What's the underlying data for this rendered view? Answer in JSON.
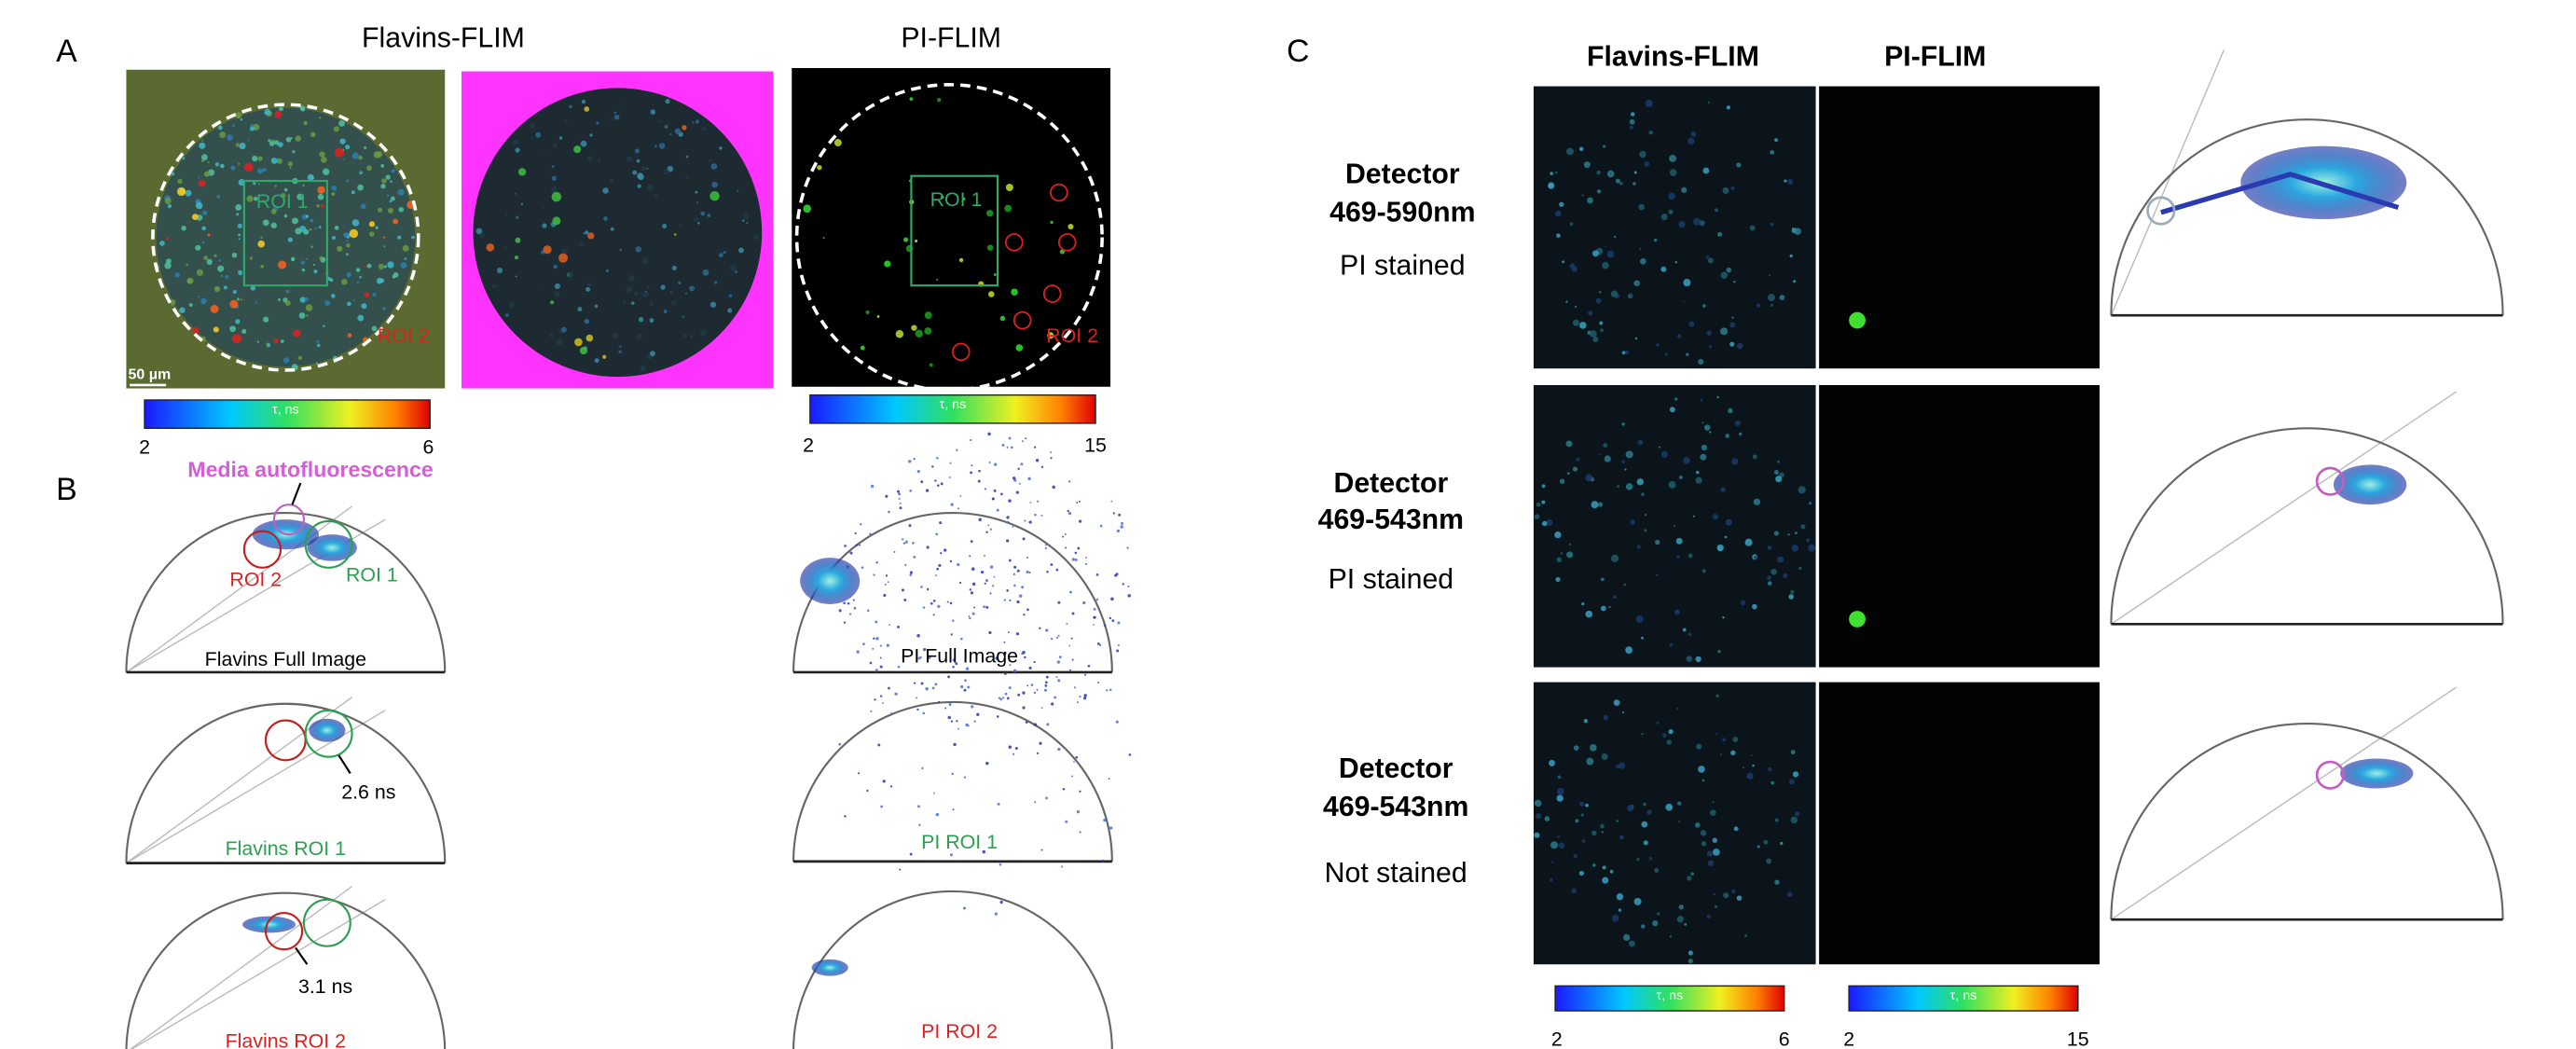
{
  "panel_a": {
    "label": "A",
    "titles": [
      "Flavins-FLIM",
      "PI-FLIM"
    ],
    "image_labels": {
      "flavins_roi_1": "ROI 1",
      "flavins_roi_2": "ROI 2",
      "scale_bar": "50 µm",
      "pi_roi_1": "ROI 1",
      "pi_roi_2": "ROI 2"
    },
    "colorbars": [
      {
        "label": "τ, ns",
        "min": 2,
        "max": 6
      },
      {
        "label": "τ, ns",
        "min": 2,
        "max": 15
      }
    ]
  },
  "panel_b": {
    "label": "B",
    "annotation": "Media autofluorescence",
    "roi_labels": [
      "ROI 2",
      "ROI 1"
    ],
    "phasors": [
      {
        "title": "Flavins Full Image"
      },
      {
        "title": "Flavins ROI 1",
        "lifetime": "2.6 ns"
      },
      {
        "title": "Flavins ROI 2",
        "lifetime": "3.1 ns"
      },
      {
        "title": "PI Full Image"
      },
      {
        "title": "PI ROI 1"
      },
      {
        "title": "PI ROI 2"
      }
    ]
  },
  "panel_c": {
    "label": "C",
    "titles": [
      "Flavins-FLIM",
      "PI-FLIM"
    ],
    "rows": [
      {
        "detector": "Detector",
        "range": "469-590nm",
        "condition": "PI stained"
      },
      {
        "detector": "Detector",
        "range": "469-543nm",
        "condition": "PI stained"
      },
      {
        "detector": "Detector",
        "range": "469-543nm",
        "condition": "Not stained"
      }
    ],
    "colorbars": [
      {
        "label": "τ, ns",
        "min": 2,
        "max": 6
      },
      {
        "label": "τ, ns",
        "min": 2,
        "max": 15
      }
    ]
  }
}
